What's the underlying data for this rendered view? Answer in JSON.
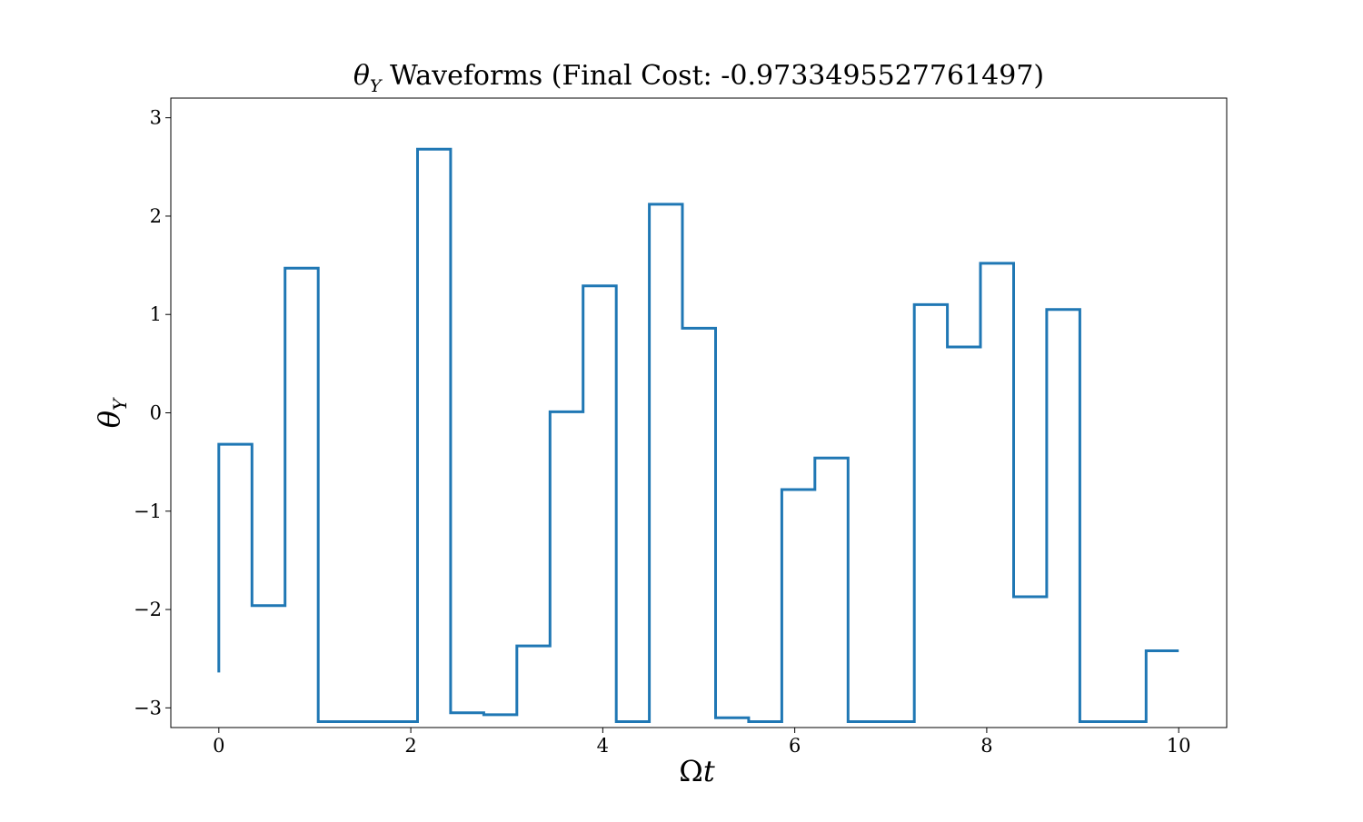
{
  "chart_data": {
    "type": "line",
    "step": "post",
    "title": {
      "symbol": "θ",
      "subscript": "Υ",
      "text": " Waveforms (Final Cost: -0.9733495527761497)"
    },
    "xlabel": {
      "symbol": "Ω",
      "var": "t"
    },
    "ylabel": {
      "symbol": "θ",
      "subscript": "Υ"
    },
    "xlim": [
      -0.5,
      10.5
    ],
    "ylim": [
      -3.2,
      3.2
    ],
    "xticks": [
      0,
      2,
      4,
      6,
      8,
      10
    ],
    "xtick_labels": [
      "0",
      "2",
      "4",
      "6",
      "8",
      "10"
    ],
    "yticks": [
      -3,
      -2,
      -1,
      0,
      1,
      2,
      3
    ],
    "ytick_labels": [
      "−3",
      "−2",
      "−1",
      "0",
      "1",
      "2",
      "3"
    ],
    "grid": false,
    "line_color": "#1f77b4",
    "series": [
      {
        "x": [
          0.0,
          0.345,
          0.69,
          1.035,
          1.38,
          1.725,
          2.07,
          2.415,
          2.76,
          3.105,
          3.45,
          3.795,
          4.14,
          4.485,
          4.83,
          5.175,
          5.52,
          5.865,
          6.21,
          6.555,
          6.9,
          7.245,
          7.59,
          7.935,
          8.28,
          8.625,
          8.97,
          9.315,
          9.66,
          10.0
        ],
        "y": [
          -0.32,
          -1.96,
          1.47,
          -3.14,
          -3.14,
          -3.14,
          2.68,
          -3.05,
          -3.07,
          -2.37,
          0.01,
          1.29,
          -3.14,
          2.12,
          0.86,
          -3.1,
          -3.14,
          -0.78,
          -0.46,
          -3.14,
          -3.14,
          1.1,
          0.67,
          1.52,
          -1.87,
          1.05,
          -3.14,
          -3.14,
          -2.42,
          -2.42
        ],
        "start_y": -2.64
      }
    ]
  }
}
